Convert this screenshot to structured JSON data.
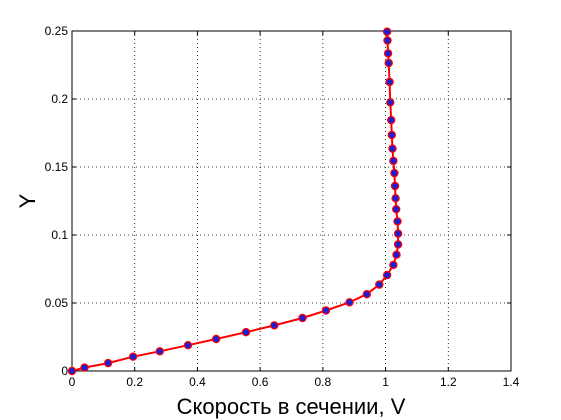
{
  "chart_data": {
    "type": "line",
    "title": "",
    "xlabel": "Скорость в сечении, V",
    "ylabel": "Y",
    "xlim": [
      0,
      1.4
    ],
    "ylim": [
      0,
      0.25
    ],
    "grid": true,
    "grid_style": "dotted",
    "x_ticks": [
      "0",
      "0.2",
      "0.4",
      "0.6",
      "0.8",
      "1",
      "1.2",
      "1.4"
    ],
    "y_ticks": [
      "0",
      "0.05",
      "0.1",
      "0.15",
      "0.2",
      "0.25"
    ],
    "line_color": "#ff0000",
    "marker_face_color": "#1e1ed2",
    "marker_edge_color": "#ff0000",
    "series": [
      {
        "x": [
          0.0,
          0.04,
          0.115,
          0.195,
          0.28,
          0.37,
          0.46,
          0.555,
          0.645,
          0.735,
          0.81,
          0.885,
          0.94,
          0.98,
          1.005,
          1.025,
          1.035,
          1.04,
          1.04,
          1.038,
          1.034,
          1.032,
          1.03,
          1.028,
          1.025,
          1.022,
          1.02,
          1.018,
          1.015,
          1.013,
          1.01,
          1.008,
          1.006,
          1.005
        ],
        "y": [
          0.0,
          0.0025,
          0.0058,
          0.0105,
          0.0145,
          0.019,
          0.0235,
          0.0285,
          0.0335,
          0.039,
          0.0445,
          0.0505,
          0.0565,
          0.0635,
          0.0705,
          0.078,
          0.0855,
          0.093,
          0.101,
          0.11,
          0.119,
          0.127,
          0.136,
          0.1455,
          0.1545,
          0.1635,
          0.1735,
          0.1845,
          0.1975,
          0.2125,
          0.2265,
          0.2335,
          0.243,
          0.2495
        ]
      }
    ]
  }
}
